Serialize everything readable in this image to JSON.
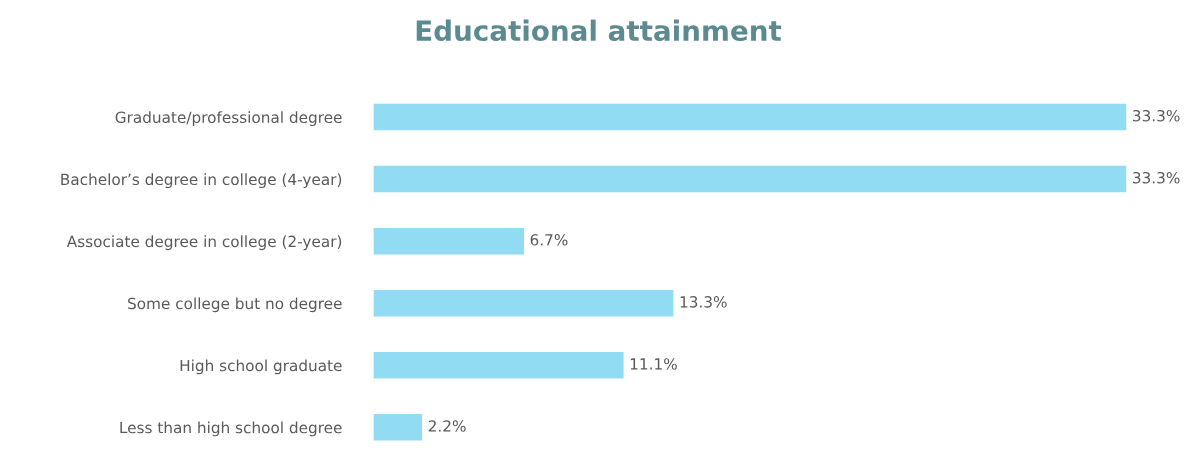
{
  "chart_data": {
    "type": "bar",
    "orientation": "horizontal",
    "title": "Educational attainment",
    "categories": [
      "Graduate/professional degree",
      "Bachelor’s degree in college (4-year)",
      "Associate degree in college (2-year)",
      "Some college but no degree",
      "High school graduate",
      "Less than high school degree"
    ],
    "values": [
      33.3,
      33.3,
      6.7,
      13.3,
      11.1,
      2.2
    ],
    "value_labels": [
      "33.3%",
      "33.3%",
      "6.7%",
      "13.3%",
      "11.1%",
      "2.2%"
    ],
    "color": "#92dcf3"
  }
}
